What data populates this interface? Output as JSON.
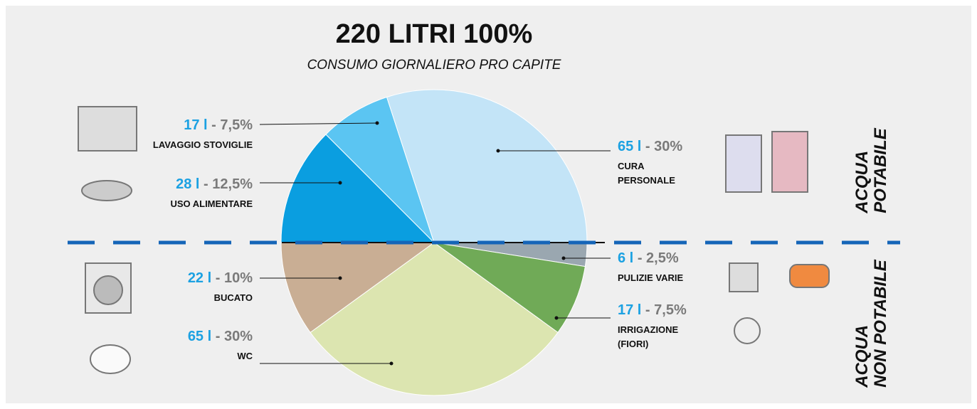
{
  "chart_data": {
    "type": "pie",
    "title": "220 LITRI  100%",
    "subtitle": "CONSUMO GIORNALIERO PRO CAPITE",
    "categories": [
      "USO ALIMENTARE",
      "LAVAGGIO STOVIGLIE",
      "CURA PERSONALE",
      "PULIZIE VARIE",
      "IRRIGAZIONE (FIORI)",
      "WC",
      "BUCATO"
    ],
    "values": [
      12.5,
      7.5,
      30,
      2.5,
      7.5,
      30,
      10
    ],
    "value_labels": [
      "12,5%",
      "7,5%",
      "30%",
      "2,5%",
      "7,5%",
      "30%",
      "10%"
    ],
    "volume_labels": [
      "28 l",
      "17 l",
      "65 l",
      "6 l",
      "17 l",
      "65 l",
      "22 l"
    ],
    "separator": "-",
    "colors": [
      "#0a9ee0",
      "#5bc5f2",
      "#c3e4f7",
      "#9aa7b0",
      "#70aa57",
      "#dce5b0",
      "#c9ae94"
    ],
    "side_labels": [
      [
        "ACQUA",
        "POTABILE"
      ],
      [
        "ACQUA",
        "NON POTABILE"
      ]
    ]
  }
}
